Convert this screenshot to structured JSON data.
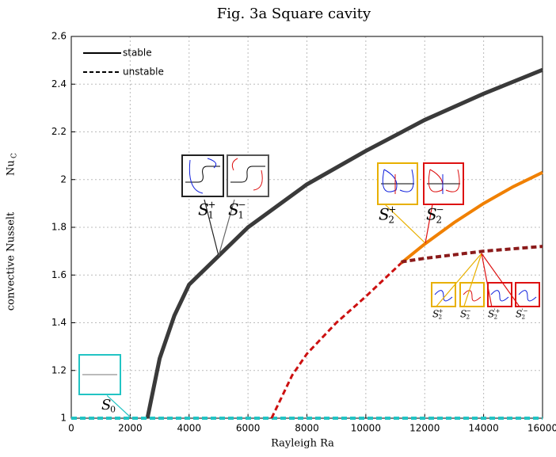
{
  "chart_data": {
    "type": "line",
    "title": "Fig. 3a     Square cavity",
    "x_label": "Rayleigh Ra",
    "y_label": "convective Nusselt",
    "y_label_symbol": {
      "base": "Nu",
      "sub": "C"
    },
    "xlim": [
      0,
      16000
    ],
    "ylim": [
      1,
      2.6
    ],
    "xticks": [
      0,
      2000,
      4000,
      6000,
      8000,
      10000,
      12000,
      14000,
      16000
    ],
    "yticks": [
      1,
      1.2,
      1.4,
      1.6,
      1.8,
      2,
      2.2,
      2.4,
      2.6
    ],
    "grid": true,
    "legend_position": "upper-left",
    "legend": [
      {
        "label": "stable",
        "style": "solid"
      },
      {
        "label": "unstable",
        "style": "dashed"
      }
    ],
    "series": [
      {
        "color": "#3a3a3a",
        "style": "solid",
        "width": 5,
        "x": [
          2585,
          3000,
          3500,
          4000,
          5000,
          6000,
          8000,
          10000,
          12000,
          14000,
          16000
        ],
        "values": [
          1,
          1.25,
          1.43,
          1.56,
          1.68,
          1.8,
          1.98,
          2.12,
          2.25,
          2.36,
          2.46
        ]
      },
      {
        "color": "#22c4c4",
        "style": "dashed",
        "width": 4,
        "x": [
          0,
          16000
        ],
        "values": [
          1,
          1
        ]
      },
      {
        "color": "#cc1010",
        "style": "dashed",
        "width": 3,
        "x": [
          6800,
          7500,
          8000,
          9000,
          10000,
          11200
        ],
        "values": [
          1,
          1.18,
          1.27,
          1.4,
          1.51,
          1.65
        ]
      },
      {
        "color": "#f08000",
        "style": "solid",
        "width": 4,
        "x": [
          11200,
          12000,
          13000,
          14000,
          15000,
          16000
        ],
        "values": [
          1.65,
          1.73,
          1.82,
          1.9,
          1.97,
          2.03
        ]
      },
      {
        "color": "#8b1a1a",
        "style": "dashed",
        "width": 4,
        "x": [
          11200,
          12000,
          14000,
          16000
        ],
        "values": [
          1.655,
          1.67,
          1.7,
          1.72
        ]
      }
    ],
    "annotations": [
      {
        "base": "S",
        "sub": "0",
        "color": "#22c4c4"
      },
      {
        "base": "S",
        "sub": "1",
        "sup": "+",
        "color": "#222222"
      },
      {
        "base": "S",
        "sub": "1",
        "sup": "−",
        "color": "#666666"
      },
      {
        "base": "S",
        "sub": "2",
        "sup": "+",
        "color": "#e8b000"
      },
      {
        "base": "S",
        "sub": "2",
        "sup": "−",
        "color": "#dd1111"
      },
      {
        "base": "S",
        "sub": "2",
        "sup": "+",
        "color": "#e8b000"
      },
      {
        "base": "S",
        "sub": "2",
        "sup": "−",
        "color": "#e8b000"
      },
      {
        "base": "S",
        "sub": "2",
        "sup": "'+",
        "color": "#dd1111"
      },
      {
        "base": "S",
        "sub": "2",
        "sup": "'−",
        "color": "#dd1111"
      }
    ]
  }
}
